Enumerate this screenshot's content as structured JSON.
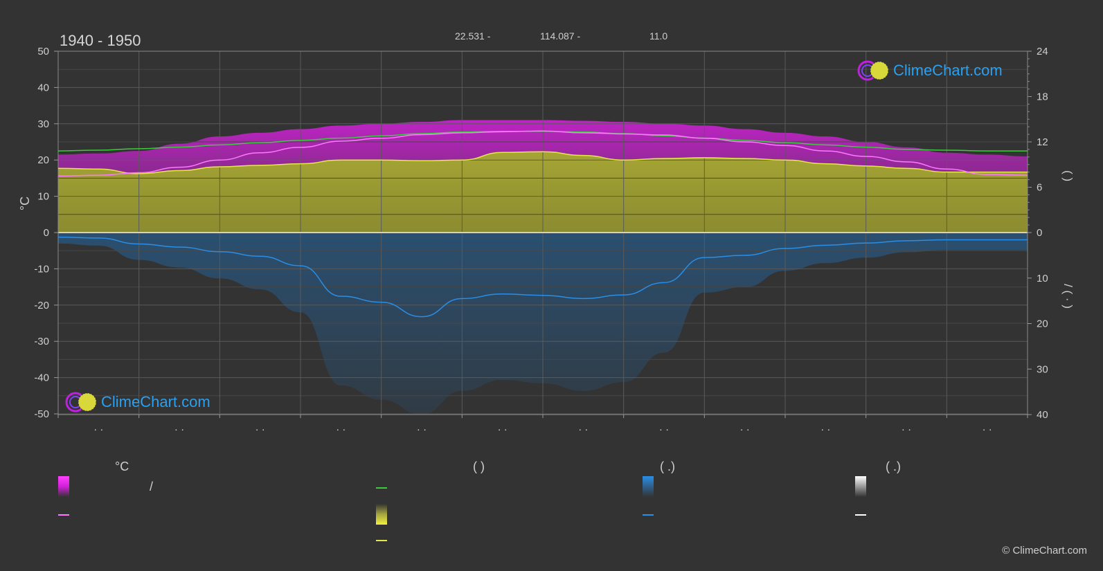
{
  "header": {
    "period": "1940 - 1950",
    "lat": "22.531 -",
    "lon": "114.087 -",
    "elev": "11.0"
  },
  "logo": {
    "text": "ClimeChart.com"
  },
  "copyright": "© ClimeChart.com",
  "legend": {
    "col1_head": "°C",
    "col2_head": "(          )",
    "col3_head": "(   .)",
    "col4_head": "(   .)",
    "slash": "/"
  },
  "colors": {
    "background": "#333333",
    "temp_band": "#c81ed0",
    "sun_band": "#c8c83c",
    "precip": "#1e78c8",
    "green": "#3ccd3c",
    "pink": "#ff78ff",
    "yellow": "#e6e650",
    "blue": "#2a8ee6",
    "white": "#ffffff"
  },
  "chart_data": {
    "type": "area",
    "x_ticks": [
      "· ·",
      "· ·",
      "· ·",
      "· ·",
      "· ·",
      "· ·",
      "· ·",
      "· ·",
      "· ·",
      "· ·",
      "· ·",
      "· ·"
    ],
    "left_axis": {
      "label": "°C",
      "ylim": [
        -50,
        50
      ],
      "ticks": [
        "50",
        "40",
        "30",
        "20",
        "10",
        "0",
        "-10",
        "-20",
        "-30",
        "-40",
        "-50"
      ]
    },
    "right_axis_top": {
      "ticks": [
        "24",
        "18",
        "12",
        "6",
        "0"
      ],
      "ylim": [
        0,
        24
      ],
      "label": "(    )"
    },
    "right_axis_bottom": {
      "ticks": [
        "10",
        "20",
        "30",
        "40"
      ],
      "ylim": [
        0,
        40
      ],
      "label": "/    (  ·  )"
    },
    "x_points": [
      0.0,
      0.5,
      1.0,
      1.5,
      2.0,
      2.5,
      3.0,
      3.5,
      4.0,
      4.5,
      5.0,
      5.5,
      6.0,
      6.5,
      7.0,
      7.5,
      8.0,
      8.5,
      9.0,
      9.5,
      10.0,
      10.5,
      11.0,
      11.5,
      12.0
    ],
    "series": [
      {
        "key": "daylight",
        "color": "#3ccd3c",
        "axis": "right_top",
        "values": [
          10.8,
          10.9,
          11.1,
          11.3,
          11.6,
          11.9,
          12.2,
          12.5,
          12.8,
          13.1,
          13.3,
          13.4,
          13.4,
          13.3,
          13.1,
          12.8,
          12.5,
          12.2,
          11.9,
          11.6,
          11.3,
          11.0,
          10.9,
          10.8,
          10.8
        ]
      },
      {
        "key": "sunshine",
        "color": "#e6e650",
        "axis": "right_top",
        "values": [
          8.5,
          8.4,
          7.8,
          8.2,
          8.7,
          8.9,
          9.1,
          9.6,
          9.6,
          9.5,
          9.6,
          10.6,
          10.7,
          10.2,
          9.6,
          9.8,
          9.9,
          9.8,
          9.6,
          9.1,
          8.8,
          8.5,
          8.0,
          8.0,
          8.0
        ]
      },
      {
        "key": "temp_daily_mean",
        "color": "#ff78ff",
        "axis": "left",
        "values": [
          15.6,
          15.8,
          16.5,
          18.0,
          20.0,
          22.0,
          23.5,
          25.2,
          26.0,
          27.0,
          27.5,
          27.8,
          28.0,
          27.5,
          27.2,
          26.9,
          26.0,
          25.0,
          24.0,
          22.5,
          21.0,
          19.5,
          17.5,
          16.0,
          15.8
        ]
      },
      {
        "key": "precip_mean",
        "color": "#2a8ee6",
        "axis": "right_bottom",
        "values": [
          1.0,
          1.2,
          2.5,
          3.2,
          4.2,
          5.2,
          7.3,
          14.0,
          15.3,
          18.5,
          14.5,
          13.5,
          13.8,
          14.5,
          13.7,
          11.0,
          5.5,
          5.0,
          3.5,
          2.8,
          2.3,
          1.8,
          1.6,
          1.6,
          1.6
        ]
      },
      {
        "key": "temp_max_band",
        "color": "#c81ed0",
        "axis": "left",
        "values": [
          21.5,
          21.8,
          22.5,
          24.5,
          26.5,
          27.5,
          28.5,
          29.5,
          30.0,
          30.5,
          31.0,
          31.0,
          31.0,
          30.8,
          30.5,
          30.0,
          29.5,
          28.5,
          27.5,
          26.5,
          25.0,
          23.5,
          22.0,
          21.5,
          21.0
        ]
      }
    ]
  }
}
